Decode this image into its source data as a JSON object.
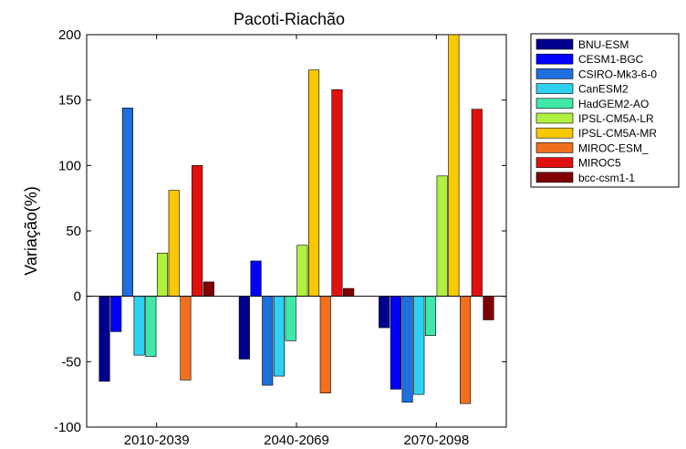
{
  "chart_data": {
    "type": "bar",
    "title": "Pacoti-Riachão",
    "xlabel": "",
    "ylabel": "Variação(%)",
    "categories": [
      "2010-2039",
      "2040-2069",
      "2070-2098"
    ],
    "ylim": [
      -100,
      200
    ],
    "yticks": [
      -100,
      -50,
      0,
      50,
      100,
      150,
      200
    ],
    "legend_position": "right",
    "series": [
      {
        "name": "BNU-ESM",
        "color": "#00008f",
        "values": [
          -65,
          -48,
          -24
        ]
      },
      {
        "name": "CESM1-BGC",
        "color": "#0000ff",
        "values": [
          -27,
          27,
          -71
        ]
      },
      {
        "name": "CSIRO-Mk3-6-0",
        "color": "#1f6fdf",
        "values": [
          144,
          -68,
          -81
        ]
      },
      {
        "name": "CanESM2",
        "color": "#30d0f0",
        "values": [
          -45,
          -61,
          -75
        ]
      },
      {
        "name": "HadGEM2-AO",
        "color": "#40e8a8",
        "values": [
          -46,
          -34,
          -30
        ]
      },
      {
        "name": "IPSL-CM5A-LR",
        "color": "#b0f040",
        "values": [
          33,
          39,
          92
        ]
      },
      {
        "name": "IPSL-CM5A-MR",
        "color": "#f8c800",
        "values": [
          81,
          173,
          200
        ]
      },
      {
        "name": "MIROC-ESM_",
        "color": "#f07020",
        "values": [
          -64,
          -74,
          -82
        ]
      },
      {
        "name": "MIROC5",
        "color": "#e01010",
        "values": [
          100,
          158,
          143
        ]
      },
      {
        "name": "bcc-csm1-1",
        "color": "#7f0000",
        "values": [
          11,
          6,
          -18
        ]
      }
    ]
  }
}
